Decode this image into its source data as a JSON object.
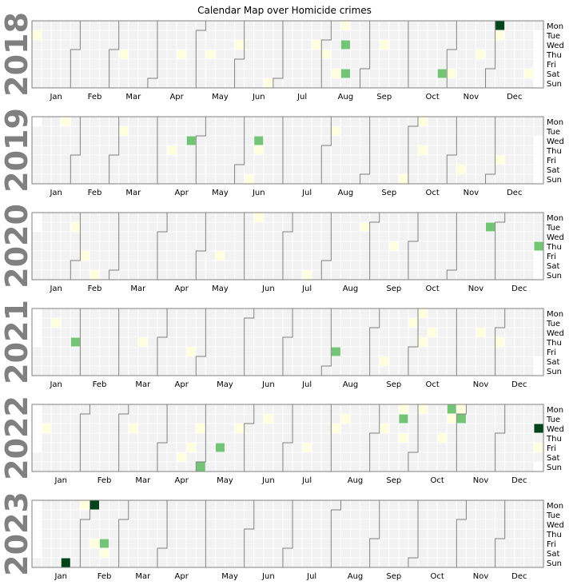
{
  "title": "Calendar Map over Homicide crimes",
  "colors": {
    "empty": "#f2f2f2",
    "grid": "#ffffff",
    "month_border": "#808080",
    "level_1": "#ffffe0",
    "level_2": "#74c476",
    "level_3": "#00441b"
  },
  "chart_data": {
    "type": "heatmap",
    "title": "Calendar Map over Homicide crimes",
    "weekday_labels": [
      "Mon",
      "Tue",
      "Wed",
      "Thu",
      "Fri",
      "Sat",
      "Sun"
    ],
    "month_labels": [
      "Jan",
      "Feb",
      "Mar",
      "Apr",
      "May",
      "Jun",
      "Jul",
      "Aug",
      "Sep",
      "Oct",
      "Nov",
      "Dec"
    ],
    "value_scale": {
      "min": 1,
      "max": 3
    },
    "years": [
      {
        "year": "2018",
        "events": [
          {
            "date": "2018-01-02",
            "value": 1
          },
          {
            "date": "2018-03-08",
            "value": 1
          },
          {
            "date": "2018-04-19",
            "value": 1
          },
          {
            "date": "2018-05-10",
            "value": 1
          },
          {
            "date": "2018-05-30",
            "value": 1
          },
          {
            "date": "2018-06-24",
            "value": 1
          },
          {
            "date": "2018-07-25",
            "value": 1
          },
          {
            "date": "2018-08-02",
            "value": 1
          },
          {
            "date": "2018-08-11",
            "value": 1
          },
          {
            "date": "2018-08-13",
            "value": 1
          },
          {
            "date": "2018-08-15",
            "value": 2
          },
          {
            "date": "2018-08-18",
            "value": 2
          },
          {
            "date": "2018-09-12",
            "value": 1
          },
          {
            "date": "2018-10-27",
            "value": 2
          },
          {
            "date": "2018-11-03",
            "value": 1
          },
          {
            "date": "2018-11-22",
            "value": 1
          },
          {
            "date": "2018-12-03",
            "value": 3
          },
          {
            "date": "2018-12-04",
            "value": 1
          },
          {
            "date": "2018-12-29",
            "value": 1
          }
        ]
      },
      {
        "year": "2019",
        "events": [
          {
            "date": "2019-01-21",
            "value": 1
          },
          {
            "date": "2019-03-05",
            "value": 1
          },
          {
            "date": "2019-04-11",
            "value": 1
          },
          {
            "date": "2019-04-24",
            "value": 2
          },
          {
            "date": "2019-06-09",
            "value": 1
          },
          {
            "date": "2019-06-12",
            "value": 2
          },
          {
            "date": "2019-06-13",
            "value": 1
          },
          {
            "date": "2019-08-06",
            "value": 1
          },
          {
            "date": "2019-09-29",
            "value": 1
          },
          {
            "date": "2019-10-07",
            "value": 1
          },
          {
            "date": "2019-10-10",
            "value": 1
          },
          {
            "date": "2019-11-09",
            "value": 1
          },
          {
            "date": "2019-12-06",
            "value": 1
          }
        ]
      },
      {
        "year": "2020",
        "events": [
          {
            "date": "2020-01-28",
            "value": 1
          },
          {
            "date": "2020-02-07",
            "value": 1
          },
          {
            "date": "2020-02-16",
            "value": 1
          },
          {
            "date": "2020-05-15",
            "value": 1
          },
          {
            "date": "2020-06-08",
            "value": 1
          },
          {
            "date": "2020-07-19",
            "value": 1
          },
          {
            "date": "2020-08-25",
            "value": 1
          },
          {
            "date": "2020-09-17",
            "value": 1
          },
          {
            "date": "2020-11-24",
            "value": 2
          },
          {
            "date": "2020-12-31",
            "value": 2
          }
        ]
      },
      {
        "year": "2021",
        "events": [
          {
            "date": "2021-01-12",
            "value": 1
          },
          {
            "date": "2021-01-28",
            "value": 2
          },
          {
            "date": "2021-03-18",
            "value": 1
          },
          {
            "date": "2021-04-23",
            "value": 1
          },
          {
            "date": "2021-08-06",
            "value": 2
          },
          {
            "date": "2021-09-11",
            "value": 1
          },
          {
            "date": "2021-09-28",
            "value": 1
          },
          {
            "date": "2021-10-04",
            "value": 1
          },
          {
            "date": "2021-10-07",
            "value": 1
          },
          {
            "date": "2021-10-13",
            "value": 1
          },
          {
            "date": "2021-11-17",
            "value": 1
          },
          {
            "date": "2021-12-02",
            "value": 1
          }
        ]
      },
      {
        "year": "2022",
        "events": [
          {
            "date": "2022-01-05",
            "value": 1
          },
          {
            "date": "2022-03-09",
            "value": 1
          },
          {
            "date": "2022-04-16",
            "value": 1
          },
          {
            "date": "2022-04-22",
            "value": 1
          },
          {
            "date": "2022-04-27",
            "value": 1
          },
          {
            "date": "2022-05-01",
            "value": 2
          },
          {
            "date": "2022-05-13",
            "value": 2
          },
          {
            "date": "2022-05-25",
            "value": 1
          },
          {
            "date": "2022-06-14",
            "value": 1
          },
          {
            "date": "2022-07-15",
            "value": 1
          },
          {
            "date": "2022-08-03",
            "value": 1
          },
          {
            "date": "2022-08-09",
            "value": 1
          },
          {
            "date": "2022-09-07",
            "value": 1
          },
          {
            "date": "2022-09-19",
            "value": 1
          },
          {
            "date": "2022-09-20",
            "value": 2
          },
          {
            "date": "2022-09-22",
            "value": 1
          },
          {
            "date": "2022-10-03",
            "value": 1
          },
          {
            "date": "2022-10-20",
            "value": 1
          },
          {
            "date": "2022-10-24",
            "value": 2
          },
          {
            "date": "2022-10-25",
            "value": 1
          },
          {
            "date": "2022-10-31",
            "value": 1
          },
          {
            "date": "2022-11-01",
            "value": 2
          },
          {
            "date": "2022-12-28",
            "value": 3
          },
          {
            "date": "2022-12-30",
            "value": 1
          }
        ]
      },
      {
        "year": "2023",
        "events": [
          {
            "date": "2023-01-22",
            "value": 3
          },
          {
            "date": "2023-01-30",
            "value": 1
          },
          {
            "date": "2023-02-06",
            "value": 3
          },
          {
            "date": "2023-02-10",
            "value": 1
          },
          {
            "date": "2023-02-18",
            "value": 1
          },
          {
            "date": "2023-02-17",
            "value": 2
          }
        ]
      }
    ]
  }
}
